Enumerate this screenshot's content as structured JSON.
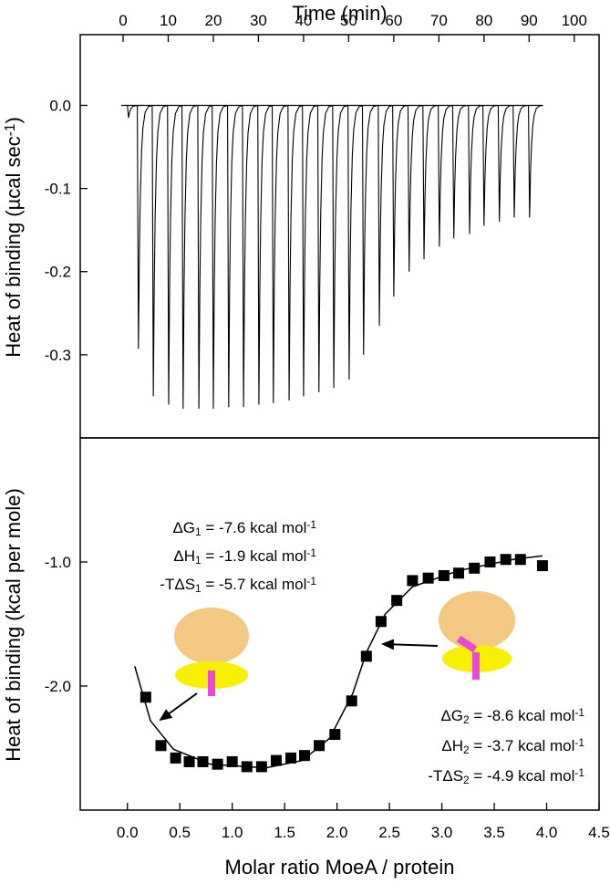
{
  "chart_data": [
    {
      "type": "line",
      "x_label": "Time (min)",
      "y_label": [
        "Heat of binding (µcal sec",
        "-1",
        ")"
      ],
      "xlim": [
        -9.5,
        105.5
      ],
      "xticks": [
        0,
        10,
        20,
        30,
        40,
        50,
        60,
        70,
        80,
        90,
        100
      ],
      "ylim": [
        -0.4,
        0.085
      ],
      "yticks": [
        {
          "value": 0.0,
          "label": "0.0"
        },
        {
          "value": -0.1,
          "label": "-0.1"
        },
        {
          "value": -0.2,
          "label": "-0.2"
        },
        {
          "value": -0.3,
          "label": "-0.3"
        }
      ],
      "series": [
        {
          "color": "#000000",
          "x": [
            1.2,
            3.4,
            6.7,
            10.1,
            13.3,
            16.8,
            20.0,
            23.4,
            26.7,
            30.1,
            33.3,
            36.8,
            40.0,
            43.4,
            46.7,
            50.1,
            53.3,
            56.8,
            60.0,
            63.4,
            66.7,
            70.1,
            73.3,
            76.8,
            80.0,
            83.4,
            86.7,
            90.1
          ],
          "values": [
            -0.015,
            -0.293,
            -0.35,
            -0.36,
            -0.365,
            -0.365,
            -0.365,
            -0.363,
            -0.363,
            -0.36,
            -0.358,
            -0.355,
            -0.35,
            -0.345,
            -0.34,
            -0.33,
            -0.3,
            -0.265,
            -0.23,
            -0.2,
            -0.185,
            -0.17,
            -0.16,
            -0.155,
            -0.145,
            -0.14,
            -0.135,
            -0.135
          ]
        }
      ]
    },
    {
      "type": "scatter",
      "x_label": "Molar ratio MoeA / protein",
      "y_label": "Heat of binding (kcal per mole)",
      "xlim": [
        -0.45,
        4.5
      ],
      "xticks": [
        {
          "value": 0.0,
          "label": "0.0"
        },
        {
          "value": 0.5,
          "label": "0.5"
        },
        {
          "value": 1.0,
          "label": "1.0"
        },
        {
          "value": 1.5,
          "label": "1.5"
        },
        {
          "value": 2.0,
          "label": "2.0"
        },
        {
          "value": 2.5,
          "label": "2.5"
        },
        {
          "value": 3.0,
          "label": "3.0"
        },
        {
          "value": 3.5,
          "label": "3.5"
        },
        {
          "value": 4.0,
          "label": "4.0"
        },
        {
          "value": 4.5,
          "label": "4.5"
        }
      ],
      "ylim": [
        -3.0,
        0.0
      ],
      "yticks": [
        {
          "value": -1.0,
          "label": "-1.0"
        },
        {
          "value": -2.0,
          "label": "-2.0"
        }
      ],
      "series": [
        {
          "mode": "markers",
          "color": "#000000",
          "x": [
            0.175,
            0.32,
            0.46,
            0.59,
            0.72,
            0.86,
            1.0,
            1.14,
            1.28,
            1.42,
            1.56,
            1.69,
            1.83,
            1.98,
            2.14,
            2.28,
            2.42,
            2.57,
            2.72,
            2.87,
            3.02,
            3.16,
            3.31,
            3.46,
            3.61,
            3.75,
            3.96
          ],
          "values": [
            -2.09,
            -2.48,
            -2.58,
            -2.61,
            -2.61,
            -2.63,
            -2.61,
            -2.65,
            -2.65,
            -2.6,
            -2.58,
            -2.56,
            -2.48,
            -2.39,
            -2.12,
            -1.76,
            -1.48,
            -1.31,
            -1.15,
            -1.13,
            -1.11,
            -1.09,
            -1.05,
            -1.0,
            -0.98,
            -0.98,
            -1.03
          ]
        },
        {
          "mode": "line",
          "color": "#000000",
          "x": [
            0.07,
            0.22,
            0.44,
            0.79,
            1.32,
            1.67,
            1.93,
            2.15,
            2.28,
            2.46,
            2.72,
            3.16,
            3.68,
            3.96
          ],
          "values": [
            -1.84,
            -2.28,
            -2.51,
            -2.63,
            -2.66,
            -2.6,
            -2.42,
            -2.06,
            -1.73,
            -1.42,
            -1.2,
            -1.07,
            -0.98,
            -0.95
          ]
        }
      ],
      "annotations": [
        [
          "ΔG",
          "1",
          " = -7.6 kcal mol",
          "-1"
        ],
        [
          "ΔH",
          "1",
          " = -1.9 kcal mol",
          "-1"
        ],
        [
          "-TΔS",
          "1",
          " = -5.7 kcal mol",
          "-1"
        ],
        [
          "ΔG",
          "2",
          " = -8.6 kcal mol",
          "-1"
        ],
        [
          "ΔH",
          "2",
          " = -3.7 kcal mol",
          "-1"
        ],
        [
          "-TΔS",
          "2",
          " = -4.9 kcal mol",
          "-1"
        ]
      ]
    }
  ]
}
